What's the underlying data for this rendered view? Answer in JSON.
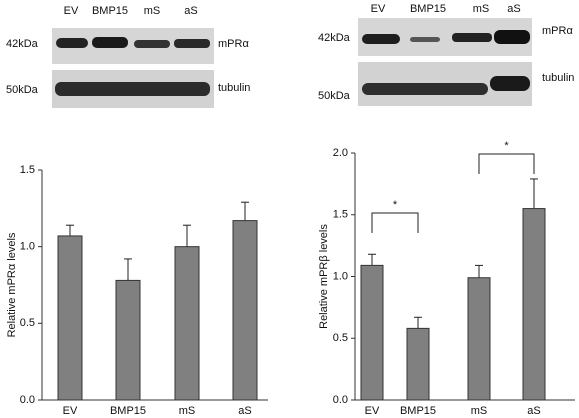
{
  "blots": [
    {
      "lanes": [
        "EV",
        "BMP15",
        "mS",
        "aS"
      ],
      "bands": [
        {
          "size": "42kDa",
          "label": "mPRα"
        },
        {
          "size": "50kDa",
          "label": "tubulin"
        }
      ]
    },
    {
      "lanes": [
        "EV",
        "BMP15",
        "mS",
        "aS"
      ],
      "bands": [
        {
          "size": "42kDa",
          "label": "mPRα"
        },
        {
          "size": "50kDa",
          "label": "tubulin"
        }
      ]
    }
  ],
  "chart_data": [
    {
      "type": "bar",
      "ylabel": "Relative mPRα levels",
      "categories": [
        "EV",
        "BMP15",
        "mS",
        "aS"
      ],
      "values": [
        1.07,
        0.78,
        1.0,
        1.17
      ],
      "errors": [
        0.07,
        0.14,
        0.14,
        0.12
      ],
      "color": "#808080",
      "ylim": [
        0,
        1.5
      ],
      "yticks": [
        {
          "value": 0,
          "label": "0.0"
        },
        {
          "value": 0.5,
          "label": "0.5"
        },
        {
          "value": 1,
          "label": "1.0"
        },
        {
          "value": 1.5,
          "label": "1.5"
        }
      ]
    },
    {
      "type": "bar",
      "ylabel": "Relative mPRβ levels",
      "categories": [
        "EV",
        "BMP15",
        "mS",
        "aS"
      ],
      "values": [
        1.09,
        0.58,
        0.99,
        1.55
      ],
      "errors": [
        0.09,
        0.09,
        0.1,
        0.24
      ],
      "color": "#808080",
      "ylim": [
        0,
        2
      ],
      "yticks": [
        {
          "value": 0,
          "label": "0.0"
        },
        {
          "value": 0.5,
          "label": "0.5"
        },
        {
          "value": 1,
          "label": "1.0"
        },
        {
          "value": 1.5,
          "label": "1.5"
        },
        {
          "value": 2,
          "label": "2.0"
        }
      ],
      "annotations": [
        "*",
        "*"
      ]
    }
  ]
}
